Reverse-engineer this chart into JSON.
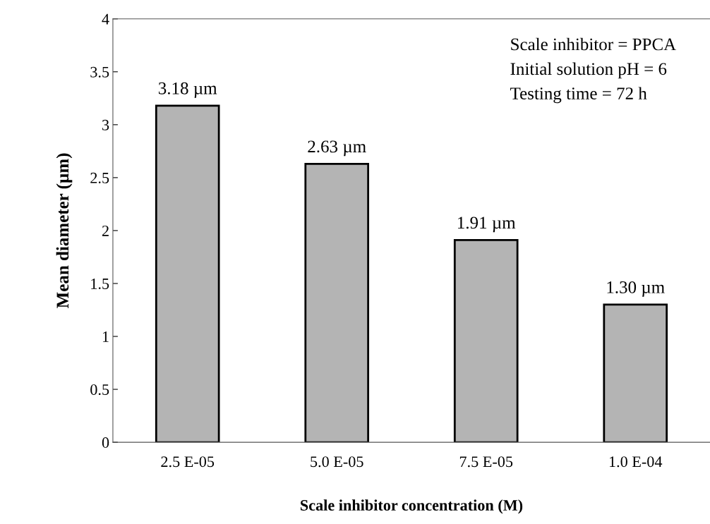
{
  "chart_data": {
    "type": "bar",
    "xlabel": "Scale inhibitor concentration (M)",
    "ylabel": "Mean diameter (µm)",
    "categories": [
      "2.5 E-05",
      "5.0 E-05",
      "7.5 E-05",
      "1.0 E-04"
    ],
    "values": [
      3.18,
      2.63,
      1.91,
      1.3
    ],
    "value_labels": [
      "3.18 µm",
      "2.63 µm",
      "1.91 µm",
      "1.30 µm"
    ],
    "color": "#b4b4b4",
    "ylim": [
      0,
      4
    ],
    "yticks": [
      0,
      0.5,
      1,
      1.5,
      2,
      2.5,
      3,
      3.5,
      4
    ],
    "annotations": [
      "Scale inhibitor = PPCA",
      "Initial solution pH = 6",
      "Testing time = 72 h"
    ],
    "grid": false,
    "legend": false
  }
}
